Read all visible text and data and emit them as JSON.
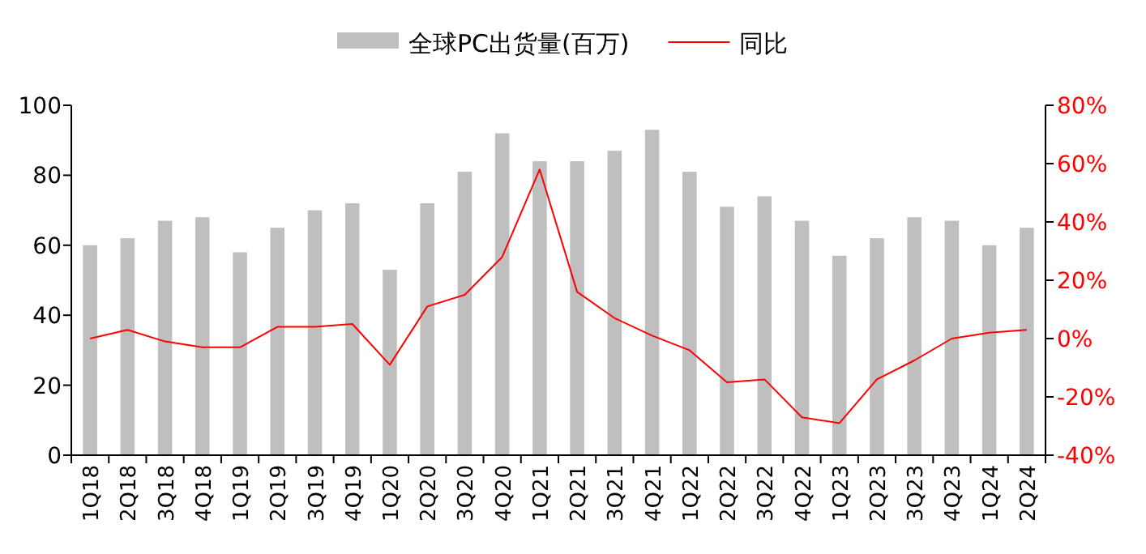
{
  "chart_data": {
    "type": "bar",
    "categories": [
      "1Q18",
      "2Q18",
      "3Q18",
      "4Q18",
      "1Q19",
      "2Q19",
      "3Q19",
      "4Q19",
      "1Q20",
      "2Q20",
      "3Q20",
      "4Q20",
      "1Q21",
      "2Q21",
      "3Q21",
      "4Q21",
      "1Q22",
      "2Q22",
      "3Q22",
      "4Q22",
      "1Q23",
      "2Q23",
      "3Q23",
      "4Q23",
      "1Q24",
      "2Q24"
    ],
    "series": [
      {
        "name": "全球PC出货量(百万)",
        "color": "#bfbfbf",
        "values": [
          60,
          62,
          67,
          68,
          58,
          65,
          70,
          72,
          53,
          72,
          81,
          92,
          84,
          84,
          87,
          93,
          81,
          71,
          74,
          67,
          57,
          62,
          68,
          67,
          60,
          65
        ]
      },
      {
        "name": "同比",
        "type": "line",
        "axis": "y2",
        "color": "#ff0000",
        "values": [
          0,
          3,
          -1,
          -3,
          -3,
          4,
          4,
          5,
          -9,
          11,
          15,
          28,
          58,
          16,
          7,
          1,
          -4,
          -15,
          -14,
          -27,
          -29,
          -14,
          -7.5,
          0,
          2,
          3
        ]
      }
    ],
    "ylim": [
      0,
      100
    ],
    "yticks": [
      0,
      20,
      40,
      60,
      80,
      100
    ],
    "y2lim": [
      -40,
      80
    ],
    "y2ticks": [
      {
        "value": -40,
        "label": "-40%"
      },
      {
        "value": -20,
        "label": "-20%"
      },
      {
        "value": 0,
        "label": "0%"
      },
      {
        "value": 20,
        "label": "20%"
      },
      {
        "value": 40,
        "label": "40%"
      },
      {
        "value": 60,
        "label": "60%"
      },
      {
        "value": 80,
        "label": "80%"
      }
    ],
    "legend": "top",
    "grid": false,
    "marker": "none",
    "line_style": "solid"
  }
}
